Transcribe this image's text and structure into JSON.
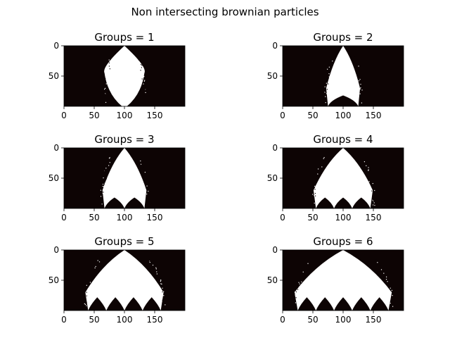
{
  "figure": {
    "title": "Non intersecting brownian particles"
  },
  "colors": {
    "background_dark": "#0d0404",
    "particles": "#ffffff",
    "axis": "#000000"
  },
  "chart_data": [
    {
      "type": "heatmap",
      "title": "Groups = 1",
      "groups": 1,
      "xticks": [
        0,
        50,
        100,
        150
      ],
      "yticks": [
        0,
        50
      ],
      "xlim": [
        0,
        200
      ],
      "ylim": [
        100,
        0
      ],
      "peak": [
        100,
        0
      ],
      "feet": [
        100
      ],
      "base_halfwidth": 4,
      "max_halfwidth": 33,
      "bulge_y": 45,
      "shape": "lens"
    },
    {
      "type": "heatmap",
      "title": "Groups = 2",
      "groups": 2,
      "xticks": [
        0,
        50,
        100,
        150
      ],
      "yticks": [
        0,
        50
      ],
      "xlim": [
        0,
        200
      ],
      "ylim": [
        100,
        0
      ],
      "peak": [
        100,
        0
      ],
      "feet": [
        75,
        125
      ],
      "shape": "arch"
    },
    {
      "type": "heatmap",
      "title": "Groups = 3",
      "groups": 3,
      "xticks": [
        0,
        50,
        100,
        150
      ],
      "yticks": [
        0,
        50
      ],
      "xlim": [
        0,
        200
      ],
      "ylim": [
        100,
        0
      ],
      "peak": [
        100,
        0
      ],
      "feet": [
        67,
        100,
        133
      ],
      "shape": "arch"
    },
    {
      "type": "heatmap",
      "title": "Groups = 4",
      "groups": 4,
      "xticks": [
        0,
        50,
        100,
        150
      ],
      "yticks": [
        0,
        50
      ],
      "xlim": [
        0,
        200
      ],
      "ylim": [
        100,
        0
      ],
      "peak": [
        100,
        0
      ],
      "feet": [
        55,
        85,
        115,
        145
      ],
      "shape": "arch"
    },
    {
      "type": "heatmap",
      "title": "Groups = 5",
      "groups": 5,
      "xticks": [
        0,
        50,
        100,
        150
      ],
      "yticks": [
        0,
        50
      ],
      "xlim": [
        0,
        200
      ],
      "ylim": [
        100,
        0
      ],
      "peak": [
        100,
        0
      ],
      "feet": [
        40,
        70,
        100,
        130,
        160
      ],
      "shape": "arch"
    },
    {
      "type": "heatmap",
      "title": "Groups = 6",
      "groups": 6,
      "xticks": [
        0,
        50,
        100,
        150
      ],
      "yticks": [
        0,
        50
      ],
      "xlim": [
        0,
        200
      ],
      "ylim": [
        100,
        0
      ],
      "peak": [
        100,
        0
      ],
      "feet": [
        25,
        55,
        85,
        115,
        145,
        175
      ],
      "shape": "arch"
    }
  ]
}
